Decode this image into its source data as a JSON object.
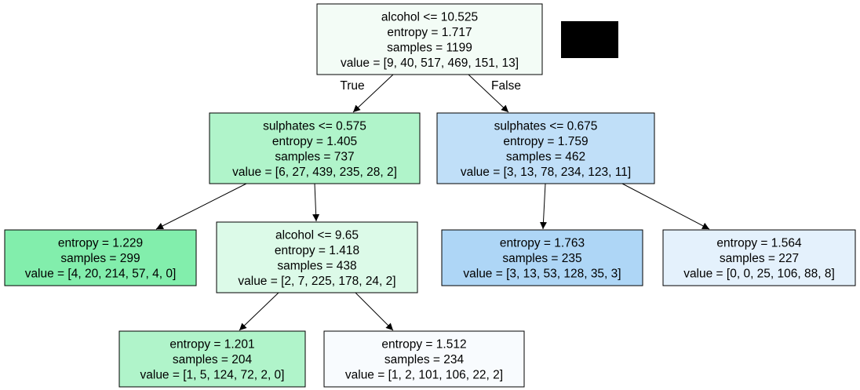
{
  "tree": {
    "nodes": [
      {
        "id": "root",
        "fill": "#f3fcf6",
        "lines": [
          "alcohol <= 10.525",
          "entropy = 1.717",
          "samples = 1199",
          "value = [9, 40, 517, 469, 151, 13]"
        ]
      },
      {
        "id": "n1",
        "fill": "#b0f4ca",
        "lines": [
          "sulphates <= 0.575",
          "entropy = 1.405",
          "samples = 737",
          "value = [6, 27, 439, 235, 28, 2]"
        ]
      },
      {
        "id": "n2",
        "fill": "#c0dff8",
        "lines": [
          "sulphates <= 0.675",
          "entropy = 1.759",
          "samples = 462",
          "value = [3, 13, 78, 234, 123, 11]"
        ]
      },
      {
        "id": "n3",
        "fill": "#82eeac",
        "lines": [
          "entropy = 1.229",
          "samples = 299",
          "value = [4, 20, 214, 57, 4, 0]"
        ]
      },
      {
        "id": "n4",
        "fill": "#dcfae8",
        "lines": [
          "alcohol <= 9.65",
          "entropy = 1.418",
          "samples = 438",
          "value = [2, 7, 225, 178, 24, 2]"
        ]
      },
      {
        "id": "n5",
        "fill": "#aed6f6",
        "lines": [
          "entropy = 1.763",
          "samples = 235",
          "value = [3, 13, 53, 128, 35, 3]"
        ]
      },
      {
        "id": "n6",
        "fill": "#e4f1fc",
        "lines": [
          "entropy = 1.564",
          "samples = 227",
          "value = [0, 0, 25, 106, 88, 8]"
        ]
      },
      {
        "id": "n7",
        "fill": "#b0f4ca",
        "lines": [
          "entropy = 1.201",
          "samples = 204",
          "value = [1, 5, 124, 72, 2, 0]"
        ]
      },
      {
        "id": "n8",
        "fill": "#f8fbfe",
        "lines": [
          "entropy = 1.512",
          "samples = 234",
          "value = [1, 2, 101, 106, 22, 2]"
        ]
      }
    ],
    "edges": [
      {
        "from": "root",
        "to": "n1",
        "label": "True"
      },
      {
        "from": "root",
        "to": "n2",
        "label": "False"
      },
      {
        "from": "n1",
        "to": "n3",
        "label": ""
      },
      {
        "from": "n1",
        "to": "n4",
        "label": ""
      },
      {
        "from": "n2",
        "to": "n5",
        "label": ""
      },
      {
        "from": "n2",
        "to": "n6",
        "label": ""
      },
      {
        "from": "n4",
        "to": "n7",
        "label": ""
      },
      {
        "from": "n4",
        "to": "n8",
        "label": ""
      }
    ]
  }
}
